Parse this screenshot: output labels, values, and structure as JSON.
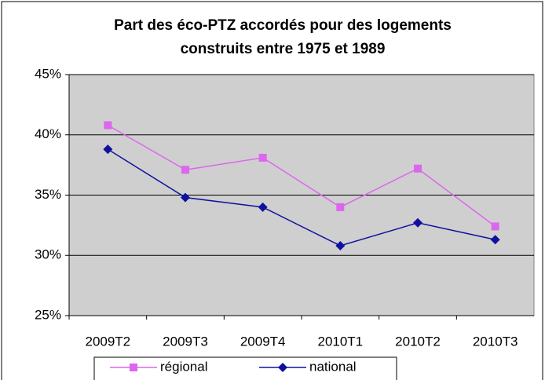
{
  "chart_data": {
    "type": "line",
    "title": [
      "Part des éco-PTZ accordés pour des logements",
      "construits entre 1975 et 1989"
    ],
    "categories": [
      "2009T2",
      "2009T3",
      "2009T4",
      "2010T1",
      "2010T2",
      "2010T3"
    ],
    "series": [
      {
        "name": "régional",
        "color": "#dd66ee",
        "marker": "square",
        "values": [
          40.8,
          37.1,
          38.1,
          34.0,
          37.2,
          32.4
        ]
      },
      {
        "name": "national",
        "color": "#1010a0",
        "marker": "diamond",
        "values": [
          38.8,
          34.8,
          34.0,
          30.8,
          32.7,
          31.3
        ]
      }
    ],
    "ylim": [
      25,
      45
    ],
    "yticks": [
      {
        "value": 25,
        "label": "25%"
      },
      {
        "value": 30,
        "label": "30%"
      },
      {
        "value": 35,
        "label": "35%"
      },
      {
        "value": 40,
        "label": "40%"
      },
      {
        "value": 45,
        "label": "45%"
      }
    ],
    "grid": true,
    "legend": "bottom",
    "plot_background": "#cfcfcf"
  }
}
